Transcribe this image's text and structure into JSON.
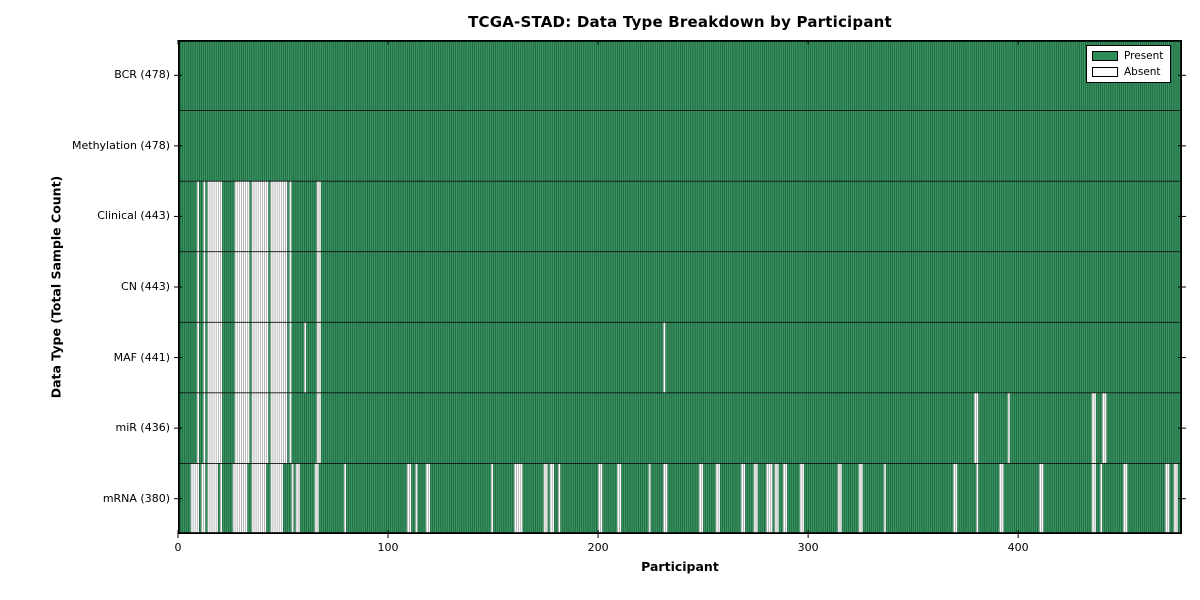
{
  "colors": {
    "present": "#2e8b57",
    "present_edge": "#1d5c3a",
    "present_light": "#46a371",
    "absent": "#ffffff",
    "absent_edge": "#a8a8a8",
    "frame": "#000000"
  },
  "chart_data": {
    "type": "heatmap",
    "title": "TCGA-STAD: Data Type Breakdown by Participant",
    "xlabel": "Participant",
    "ylabel": "Data Type (Total Sample Count)",
    "x_range": [
      0,
      478
    ],
    "xticks": [
      0,
      100,
      200,
      300,
      400
    ],
    "n_participants": 478,
    "grid": false,
    "legend_position": "upper right",
    "legend_items": [
      {
        "label": "Present",
        "color": "#2e8b57"
      },
      {
        "label": "Absent",
        "color": "#ffffff"
      }
    ],
    "rows": [
      {
        "name": "BCR",
        "label": "BCR (478)",
        "present_count": 478,
        "absent_participants": []
      },
      {
        "name": "Methylation",
        "label": "Methylation (478)",
        "present_count": 478,
        "absent_participants": []
      },
      {
        "name": "Clinical",
        "label": "Clinical (443)",
        "present_count": 443,
        "absent_participants": [
          9,
          12,
          14,
          15,
          16,
          17,
          18,
          19,
          20,
          27,
          28,
          29,
          30,
          31,
          32,
          33,
          35,
          36,
          37,
          38,
          39,
          40,
          41,
          42,
          44,
          45,
          46,
          47,
          48,
          49,
          50,
          51,
          53,
          66,
          67
        ]
      },
      {
        "name": "CN",
        "label": "CN (443)",
        "present_count": 443,
        "absent_participants": [
          9,
          12,
          14,
          15,
          16,
          17,
          18,
          19,
          20,
          27,
          28,
          29,
          30,
          31,
          32,
          33,
          35,
          36,
          37,
          38,
          39,
          40,
          41,
          42,
          44,
          45,
          46,
          47,
          48,
          49,
          50,
          51,
          53,
          66,
          67
        ]
      },
      {
        "name": "MAF",
        "label": "MAF (441)",
        "present_count": 441,
        "absent_participants": [
          9,
          12,
          14,
          15,
          16,
          17,
          18,
          19,
          20,
          27,
          28,
          29,
          30,
          31,
          32,
          33,
          35,
          36,
          37,
          38,
          39,
          40,
          41,
          42,
          44,
          45,
          46,
          47,
          48,
          49,
          50,
          51,
          53,
          60,
          66,
          67,
          231
        ]
      },
      {
        "name": "miR",
        "label": "miR (436)",
        "present_count": 436,
        "absent_participants": [
          9,
          12,
          14,
          15,
          16,
          17,
          18,
          19,
          20,
          27,
          28,
          29,
          30,
          31,
          32,
          33,
          35,
          36,
          37,
          38,
          39,
          40,
          41,
          42,
          44,
          45,
          46,
          47,
          48,
          49,
          50,
          51,
          53,
          66,
          67,
          379,
          380,
          395,
          435,
          436,
          440,
          441
        ]
      },
      {
        "name": "mRNA",
        "label": "mRNA (380)",
        "present_count": 380,
        "absent_participants": [
          6,
          7,
          8,
          9,
          11,
          12,
          14,
          15,
          16,
          17,
          18,
          20,
          26,
          27,
          28,
          29,
          30,
          31,
          32,
          35,
          36,
          37,
          38,
          39,
          40,
          41,
          44,
          45,
          46,
          47,
          48,
          49,
          54,
          56,
          57,
          65,
          66,
          79,
          109,
          110,
          113,
          118,
          119,
          149,
          160,
          161,
          162,
          163,
          174,
          175,
          177,
          178,
          181,
          200,
          201,
          209,
          210,
          224,
          231,
          232,
          248,
          249,
          256,
          257,
          268,
          269,
          274,
          275,
          280,
          281,
          282,
          284,
          285,
          288,
          289,
          296,
          297,
          314,
          315,
          324,
          325,
          336,
          369,
          370,
          380,
          391,
          392,
          410,
          411,
          435,
          436,
          439,
          450,
          451,
          470,
          471,
          474,
          475
        ]
      }
    ]
  }
}
